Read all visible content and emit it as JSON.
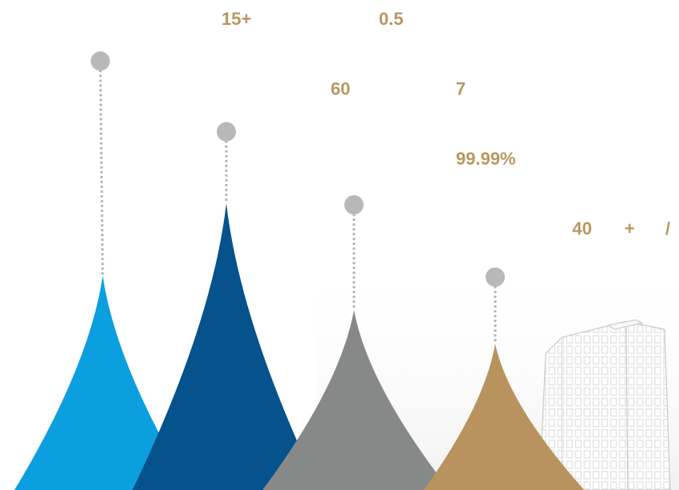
{
  "stats": {
    "s1": "15+",
    "s2": "0.5",
    "s3": "60",
    "s4": "7",
    "s5": "99.99%",
    "s6": "40",
    "s7": "+",
    "s8": "/"
  },
  "peaks": [
    {
      "name": "peak-light-blue",
      "color": "#0b9fe0"
    },
    {
      "name": "peak-dark-blue",
      "color": "#05528d"
    },
    {
      "name": "peak-gray",
      "color": "#878988"
    },
    {
      "name": "peak-gold",
      "color": "#b8935d"
    }
  ],
  "marker_color": "#b8b8b8",
  "building_icon": "office-building-illustration"
}
